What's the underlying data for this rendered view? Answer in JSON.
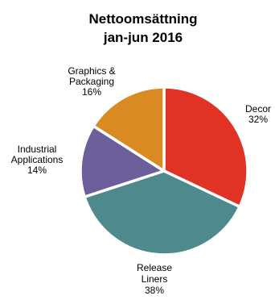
{
  "chart_data": {
    "type": "pie",
    "title": [
      "Nettoomsättning",
      "jan-jun 2016"
    ],
    "slices": [
      {
        "name": "Decor",
        "label_lines": [
          "Decor"
        ],
        "value": 32,
        "value_label": "32%",
        "color": "#e03325"
      },
      {
        "name": "Release Liners",
        "label_lines": [
          "Release",
          "Liners"
        ],
        "value": 38,
        "value_label": "38%",
        "color": "#4e8a8d"
      },
      {
        "name": "Industrial Applications",
        "label_lines": [
          "Industrial",
          "Applications"
        ],
        "value": 14,
        "value_label": "14%",
        "color": "#6d5f9c"
      },
      {
        "name": "Graphics & Packaging",
        "label_lines": [
          "Graphics &",
          "Packaging"
        ],
        "value": 16,
        "value_label": "16%",
        "color": "#d98a23"
      }
    ],
    "start_angle": "12 o'clock",
    "direction": "clockwise",
    "slice_separator_color": "#ffffff",
    "legend": "none (labels placed next to slices)"
  }
}
